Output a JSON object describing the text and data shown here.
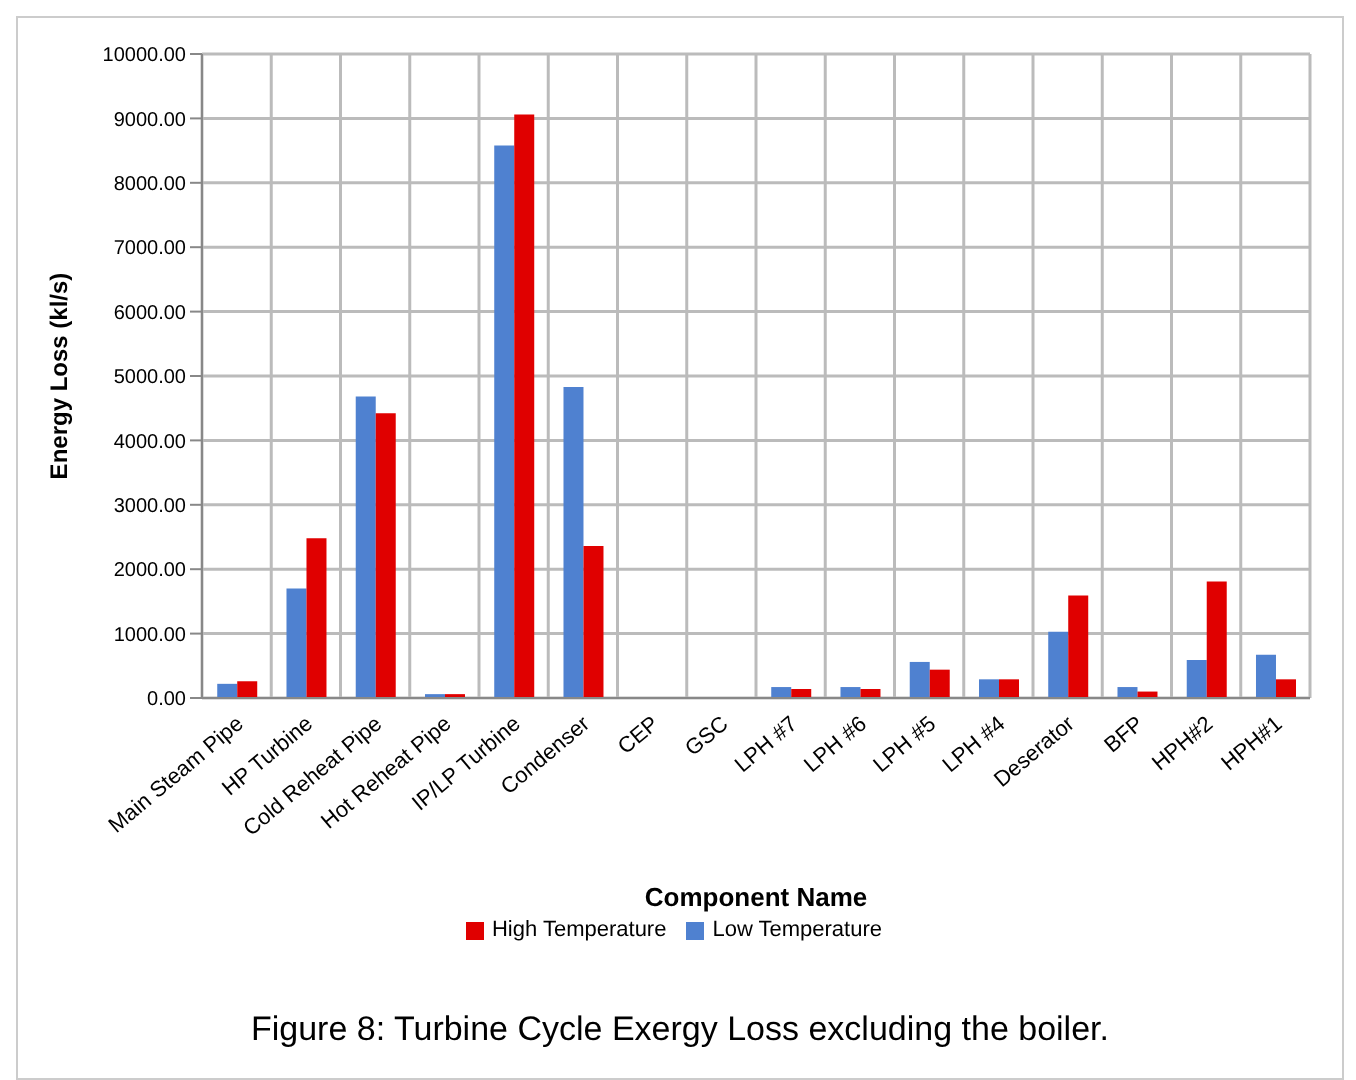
{
  "chart_data": {
    "type": "bar",
    "xlabel": "Component Name",
    "ylabel": "Energy Loss (kl/s)",
    "categories": [
      "Main Steam Pipe",
      "HP Turbine",
      "Cold Reheat Pipe",
      "Hot Reheat Pipe",
      "IP/LP Turbine",
      "Condenser",
      "CEP",
      "GSC",
      "LPH #7",
      "LPH #6",
      "LPH #5",
      "LPH #4",
      "Deserator",
      "BFP",
      "HPH#2",
      "HPH#1"
    ],
    "series": [
      {
        "name": "Low Temperature",
        "color": "#4f81d0",
        "values": [
          220,
          1700,
          4680,
          60,
          8580,
          4830,
          0,
          0,
          170,
          170,
          560,
          290,
          1030,
          170,
          590,
          670
        ]
      },
      {
        "name": "High Temperature",
        "color": "#e00000",
        "values": [
          260,
          2480,
          4420,
          60,
          9060,
          2360,
          0,
          0,
          140,
          140,
          440,
          290,
          1590,
          100,
          1810,
          290
        ]
      }
    ],
    "ylim": [
      0,
      10000
    ],
    "yticks": [
      {
        "value": 0,
        "label": "0.00"
      },
      {
        "value": 1000,
        "label": "1000.00"
      },
      {
        "value": 2000,
        "label": "2000.00"
      },
      {
        "value": 3000,
        "label": "3000.00"
      },
      {
        "value": 4000,
        "label": "4000.00"
      },
      {
        "value": 5000,
        "label": "5000.00"
      },
      {
        "value": 6000,
        "label": "6000.00"
      },
      {
        "value": 7000,
        "label": "7000.00"
      },
      {
        "value": 8000,
        "label": "8000.00"
      },
      {
        "value": 9000,
        "label": "9000.00"
      },
      {
        "value": 10000,
        "label": "10000.00"
      }
    ],
    "grid": true,
    "legend": "bottom",
    "annotations": [
      "Figure 8: Turbine Cycle Exergy Loss excluding the boiler."
    ]
  }
}
